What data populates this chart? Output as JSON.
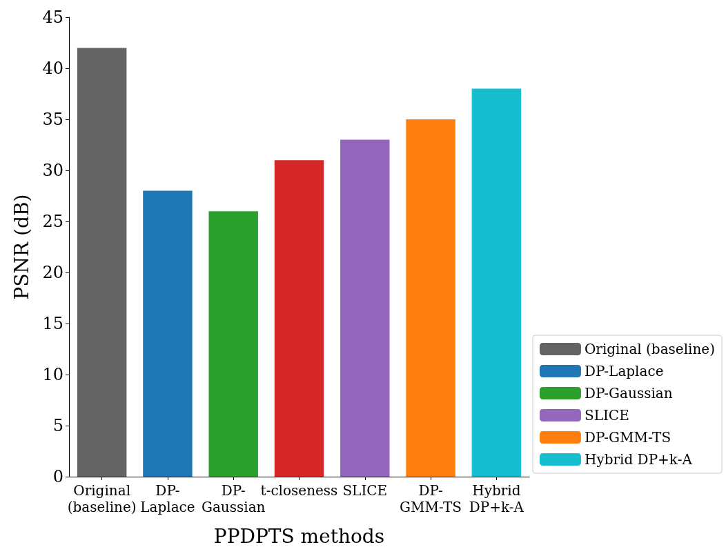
{
  "chart_data": {
    "type": "bar",
    "xlabel": "PPDPTS methods",
    "ylabel": "PSNR (dB)",
    "categories": [
      "Original\n(baseline)",
      "DP-\nLaplace",
      "DP-\nGaussian",
      "t-closeness",
      "SLICE",
      "DP-\nGMM-TS",
      "Hybrid\nDP+k-A"
    ],
    "series": [
      {
        "name": "Original (baseline)",
        "color": "#636363",
        "values": [
          42,
          null,
          null,
          null,
          null,
          null,
          null
        ]
      },
      {
        "name": "DP-Laplace",
        "color": "#1f77b4",
        "values": [
          null,
          28,
          null,
          null,
          null,
          null,
          null
        ]
      },
      {
        "name": "DP-Gaussian",
        "color": "#2ca02c",
        "values": [
          null,
          null,
          26,
          null,
          null,
          null,
          null
        ]
      },
      {
        "color": "#d62728",
        "values": [
          null,
          null,
          null,
          31,
          null,
          null,
          null
        ]
      },
      {
        "name": "SLICE",
        "color": "#9467bd",
        "values": [
          null,
          null,
          null,
          null,
          33,
          null,
          null
        ]
      },
      {
        "name": "DP-GMM-TS",
        "color": "#ff7f0e",
        "values": [
          null,
          null,
          null,
          null,
          null,
          35,
          null
        ]
      },
      {
        "name": "Hybrid DP+k-A",
        "color": "#17becf",
        "values": [
          null,
          null,
          null,
          null,
          null,
          null,
          38
        ]
      }
    ],
    "ylim": [
      0,
      45
    ],
    "yticks": [
      0,
      5,
      10,
      15,
      20,
      25,
      30,
      35,
      40,
      45
    ],
    "grid": false,
    "legend": "bottom right"
  }
}
